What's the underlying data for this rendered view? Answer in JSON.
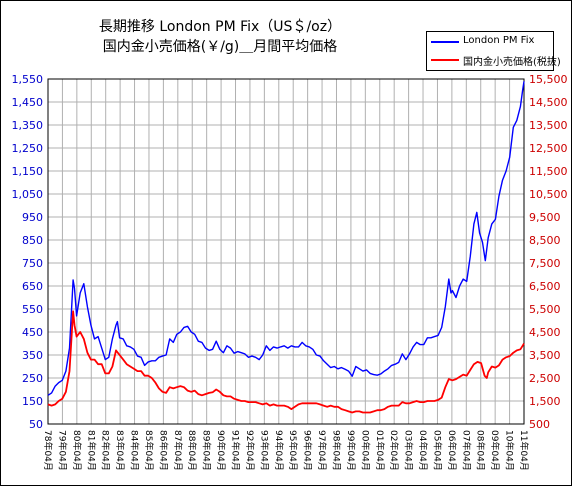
{
  "chart_data": {
    "type": "line",
    "title": "長期推移 London PM Fix（US＄/oz）",
    "subtitle": "国内金小売価格(￥/g)＿月間平均価格",
    "grid": true,
    "legend_position": "top-right",
    "y_left": {
      "ticks": [
        "1,550",
        "1,450",
        "1,350",
        "1,250",
        "1,150",
        "1,050",
        "950",
        "850",
        "750",
        "650",
        "550",
        "450",
        "350",
        "250",
        "150",
        "50"
      ],
      "min": 50,
      "max": 1550,
      "color": "#0000ff"
    },
    "y_right": {
      "ticks": [
        "15,500",
        "14,500",
        "13,500",
        "12,500",
        "11,500",
        "10,500",
        "9,500",
        "8,500",
        "7,500",
        "6,500",
        "5,500",
        "4,500",
        "3,500",
        "2,500",
        "1,500",
        "500"
      ],
      "min": 500,
      "max": 15500,
      "color": "#ff0000"
    },
    "x_ticks": [
      "78年04月",
      "79年04月",
      "80年04月",
      "81年04月",
      "82年04月",
      "83年04月",
      "84年04月",
      "85年04月",
      "86年04月",
      "87年04月",
      "88年04月",
      "89年04月",
      "90年04月",
      "91年04月",
      "92年04月",
      "93年04月",
      "94年04月",
      "95年04月",
      "96年04月",
      "97年04月",
      "98年04月",
      "99年04月",
      "00年04月",
      "01年04月",
      "02年04月",
      "03年04月",
      "04年04月",
      "05年04月",
      "06年04月",
      "07年04月",
      "08年04月",
      "09年04月",
      "10年04月",
      "11年04月"
    ],
    "x_range": [
      1978.25,
      2011.5
    ],
    "series": [
      {
        "name": "London PM Fix",
        "axis": "left",
        "color": "#0000ff",
        "points": [
          [
            1978.25,
            175
          ],
          [
            1978.5,
            185
          ],
          [
            1978.75,
            215
          ],
          [
            1979.0,
            230
          ],
          [
            1979.25,
            240
          ],
          [
            1979.5,
            280
          ],
          [
            1979.75,
            380
          ],
          [
            1980.0,
            676
          ],
          [
            1980.1,
            640
          ],
          [
            1980.25,
            520
          ],
          [
            1980.5,
            620
          ],
          [
            1980.75,
            660
          ],
          [
            1981.0,
            560
          ],
          [
            1981.25,
            480
          ],
          [
            1981.5,
            420
          ],
          [
            1981.75,
            430
          ],
          [
            1982.0,
            380
          ],
          [
            1982.25,
            330
          ],
          [
            1982.5,
            340
          ],
          [
            1982.75,
            420
          ],
          [
            1983.0,
            480
          ],
          [
            1983.1,
            495
          ],
          [
            1983.25,
            425
          ],
          [
            1983.5,
            420
          ],
          [
            1983.75,
            390
          ],
          [
            1984.0,
            385
          ],
          [
            1984.25,
            375
          ],
          [
            1984.5,
            345
          ],
          [
            1984.75,
            340
          ],
          [
            1985.0,
            305
          ],
          [
            1985.25,
            320
          ],
          [
            1985.5,
            325
          ],
          [
            1985.75,
            325
          ],
          [
            1986.0,
            340
          ],
          [
            1986.25,
            345
          ],
          [
            1986.5,
            350
          ],
          [
            1986.75,
            420
          ],
          [
            1987.0,
            405
          ],
          [
            1987.25,
            440
          ],
          [
            1987.5,
            450
          ],
          [
            1987.75,
            470
          ],
          [
            1988.0,
            475
          ],
          [
            1988.25,
            450
          ],
          [
            1988.5,
            440
          ],
          [
            1988.75,
            410
          ],
          [
            1989.0,
            405
          ],
          [
            1989.25,
            380
          ],
          [
            1989.5,
            370
          ],
          [
            1989.75,
            375
          ],
          [
            1990.0,
            410
          ],
          [
            1990.25,
            375
          ],
          [
            1990.5,
            360
          ],
          [
            1990.75,
            390
          ],
          [
            1991.0,
            380
          ],
          [
            1991.25,
            358
          ],
          [
            1991.5,
            365
          ],
          [
            1991.75,
            360
          ],
          [
            1992.0,
            355
          ],
          [
            1992.25,
            340
          ],
          [
            1992.5,
            345
          ],
          [
            1992.75,
            340
          ],
          [
            1993.0,
            330
          ],
          [
            1993.25,
            350
          ],
          [
            1993.5,
            390
          ],
          [
            1993.75,
            370
          ],
          [
            1994.0,
            385
          ],
          [
            1994.25,
            380
          ],
          [
            1994.5,
            385
          ],
          [
            1994.75,
            390
          ],
          [
            1995.0,
            380
          ],
          [
            1995.25,
            390
          ],
          [
            1995.5,
            385
          ],
          [
            1995.75,
            385
          ],
          [
            1996.0,
            405
          ],
          [
            1996.25,
            390
          ],
          [
            1996.5,
            385
          ],
          [
            1996.75,
            375
          ],
          [
            1997.0,
            350
          ],
          [
            1997.25,
            345
          ],
          [
            1997.5,
            325
          ],
          [
            1997.75,
            310
          ],
          [
            1998.0,
            295
          ],
          [
            1998.25,
            300
          ],
          [
            1998.5,
            290
          ],
          [
            1998.75,
            295
          ],
          [
            1999.0,
            288
          ],
          [
            1999.25,
            280
          ],
          [
            1999.5,
            258
          ],
          [
            1999.75,
            300
          ],
          [
            2000.0,
            290
          ],
          [
            2000.25,
            280
          ],
          [
            2000.5,
            285
          ],
          [
            2000.75,
            270
          ],
          [
            2001.0,
            265
          ],
          [
            2001.25,
            262
          ],
          [
            2001.5,
            268
          ],
          [
            2001.75,
            280
          ],
          [
            2002.0,
            290
          ],
          [
            2002.25,
            305
          ],
          [
            2002.5,
            310
          ],
          [
            2002.75,
            318
          ],
          [
            2003.0,
            355
          ],
          [
            2003.25,
            330
          ],
          [
            2003.5,
            355
          ],
          [
            2003.75,
            385
          ],
          [
            2004.0,
            405
          ],
          [
            2004.25,
            395
          ],
          [
            2004.5,
            395
          ],
          [
            2004.75,
            425
          ],
          [
            2005.0,
            425
          ],
          [
            2005.25,
            430
          ],
          [
            2005.5,
            435
          ],
          [
            2005.75,
            470
          ],
          [
            2006.0,
            560
          ],
          [
            2006.25,
            680
          ],
          [
            2006.4,
            620
          ],
          [
            2006.5,
            630
          ],
          [
            2006.75,
            600
          ],
          [
            2007.0,
            650
          ],
          [
            2007.25,
            680
          ],
          [
            2007.5,
            670
          ],
          [
            2007.75,
            780
          ],
          [
            2008.0,
            920
          ],
          [
            2008.2,
            970
          ],
          [
            2008.4,
            880
          ],
          [
            2008.6,
            840
          ],
          [
            2008.8,
            760
          ],
          [
            2009.0,
            860
          ],
          [
            2009.25,
            920
          ],
          [
            2009.5,
            940
          ],
          [
            2009.75,
            1040
          ],
          [
            2010.0,
            1110
          ],
          [
            2010.25,
            1150
          ],
          [
            2010.5,
            1210
          ],
          [
            2010.75,
            1340
          ],
          [
            2011.0,
            1370
          ],
          [
            2011.25,
            1430
          ],
          [
            2011.4,
            1500
          ],
          [
            2011.5,
            1540
          ]
        ]
      },
      {
        "name": "国内金小売価格(税抜)",
        "axis": "right",
        "color": "#ff0000",
        "points": [
          [
            1978.25,
            1350
          ],
          [
            1978.5,
            1300
          ],
          [
            1978.75,
            1350
          ],
          [
            1979.0,
            1500
          ],
          [
            1979.25,
            1600
          ],
          [
            1979.5,
            1900
          ],
          [
            1979.75,
            2800
          ],
          [
            1980.0,
            5400
          ],
          [
            1980.1,
            4800
          ],
          [
            1980.25,
            4300
          ],
          [
            1980.5,
            4500
          ],
          [
            1980.75,
            4200
          ],
          [
            1981.0,
            3600
          ],
          [
            1981.25,
            3300
          ],
          [
            1981.5,
            3300
          ],
          [
            1981.75,
            3100
          ],
          [
            1982.0,
            3100
          ],
          [
            1982.25,
            2700
          ],
          [
            1982.5,
            2700
          ],
          [
            1982.75,
            3000
          ],
          [
            1983.0,
            3700
          ],
          [
            1983.25,
            3500
          ],
          [
            1983.5,
            3300
          ],
          [
            1983.75,
            3100
          ],
          [
            1984.0,
            3000
          ],
          [
            1984.25,
            2900
          ],
          [
            1984.5,
            2800
          ],
          [
            1984.75,
            2800
          ],
          [
            1985.0,
            2600
          ],
          [
            1985.25,
            2600
          ],
          [
            1985.5,
            2500
          ],
          [
            1985.75,
            2300
          ],
          [
            1986.0,
            2050
          ],
          [
            1986.25,
            1900
          ],
          [
            1986.5,
            1850
          ],
          [
            1986.75,
            2100
          ],
          [
            1987.0,
            2050
          ],
          [
            1987.25,
            2100
          ],
          [
            1987.5,
            2150
          ],
          [
            1987.75,
            2100
          ],
          [
            1988.0,
            1950
          ],
          [
            1988.25,
            1900
          ],
          [
            1988.5,
            1950
          ],
          [
            1988.75,
            1800
          ],
          [
            1989.0,
            1750
          ],
          [
            1989.25,
            1800
          ],
          [
            1989.5,
            1850
          ],
          [
            1989.75,
            1880
          ],
          [
            1990.0,
            2000
          ],
          [
            1990.25,
            1900
          ],
          [
            1990.5,
            1750
          ],
          [
            1990.75,
            1700
          ],
          [
            1991.0,
            1700
          ],
          [
            1991.25,
            1600
          ],
          [
            1991.5,
            1550
          ],
          [
            1991.75,
            1500
          ],
          [
            1992.0,
            1500
          ],
          [
            1992.25,
            1450
          ],
          [
            1992.5,
            1450
          ],
          [
            1992.75,
            1450
          ],
          [
            1993.0,
            1400
          ],
          [
            1993.25,
            1350
          ],
          [
            1993.5,
            1400
          ],
          [
            1993.75,
            1300
          ],
          [
            1994.0,
            1350
          ],
          [
            1994.25,
            1300
          ],
          [
            1994.5,
            1300
          ],
          [
            1994.75,
            1300
          ],
          [
            1995.0,
            1250
          ],
          [
            1995.25,
            1150
          ],
          [
            1995.5,
            1250
          ],
          [
            1995.75,
            1350
          ],
          [
            1996.0,
            1400
          ],
          [
            1996.25,
            1400
          ],
          [
            1996.5,
            1400
          ],
          [
            1996.75,
            1400
          ],
          [
            1997.0,
            1400
          ],
          [
            1997.25,
            1350
          ],
          [
            1997.5,
            1300
          ],
          [
            1997.75,
            1250
          ],
          [
            1998.0,
            1300
          ],
          [
            1998.25,
            1250
          ],
          [
            1998.5,
            1250
          ],
          [
            1998.75,
            1150
          ],
          [
            1999.0,
            1100
          ],
          [
            1999.25,
            1050
          ],
          [
            1999.5,
            1000
          ],
          [
            1999.75,
            1050
          ],
          [
            2000.0,
            1050
          ],
          [
            2000.25,
            1000
          ],
          [
            2000.5,
            1000
          ],
          [
            2000.75,
            1000
          ],
          [
            2001.0,
            1050
          ],
          [
            2001.25,
            1100
          ],
          [
            2001.5,
            1100
          ],
          [
            2001.75,
            1150
          ],
          [
            2002.0,
            1250
          ],
          [
            2002.25,
            1300
          ],
          [
            2002.5,
            1300
          ],
          [
            2002.75,
            1300
          ],
          [
            2003.0,
            1450
          ],
          [
            2003.25,
            1400
          ],
          [
            2003.5,
            1400
          ],
          [
            2003.75,
            1450
          ],
          [
            2004.0,
            1500
          ],
          [
            2004.25,
            1450
          ],
          [
            2004.5,
            1450
          ],
          [
            2004.75,
            1500
          ],
          [
            2005.0,
            1500
          ],
          [
            2005.25,
            1500
          ],
          [
            2005.5,
            1550
          ],
          [
            2005.75,
            1650
          ],
          [
            2006.0,
            2100
          ],
          [
            2006.25,
            2450
          ],
          [
            2006.5,
            2400
          ],
          [
            2006.75,
            2450
          ],
          [
            2007.0,
            2550
          ],
          [
            2007.25,
            2650
          ],
          [
            2007.5,
            2600
          ],
          [
            2007.75,
            2850
          ],
          [
            2008.0,
            3100
          ],
          [
            2008.25,
            3200
          ],
          [
            2008.5,
            3150
          ],
          [
            2008.75,
            2600
          ],
          [
            2008.9,
            2500
          ],
          [
            2009.0,
            2750
          ],
          [
            2009.25,
            3000
          ],
          [
            2009.5,
            2950
          ],
          [
            2009.75,
            3050
          ],
          [
            2010.0,
            3300
          ],
          [
            2010.25,
            3400
          ],
          [
            2010.5,
            3450
          ],
          [
            2010.75,
            3600
          ],
          [
            2011.0,
            3700
          ],
          [
            2011.25,
            3750
          ],
          [
            2011.4,
            3900
          ],
          [
            2011.5,
            4000
          ]
        ]
      }
    ]
  }
}
